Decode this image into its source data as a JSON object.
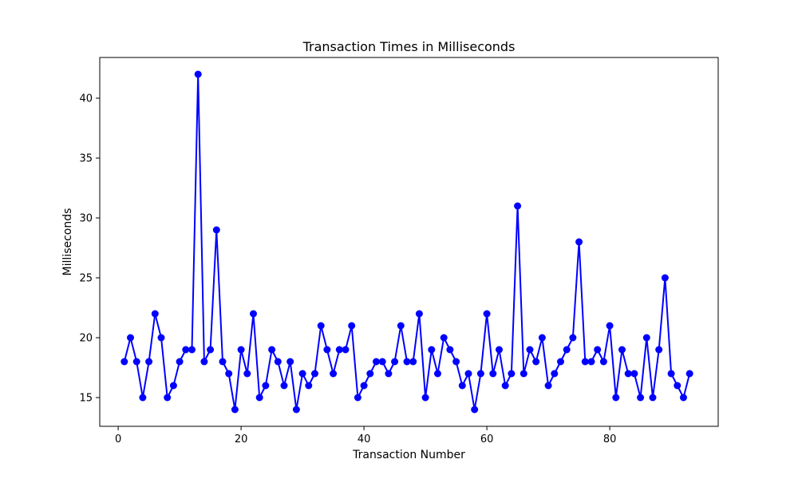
{
  "chart_data": {
    "type": "line",
    "title": "Transaction Times in Milliseconds",
    "xlabel": "Transaction Number",
    "ylabel": "Milliseconds",
    "xlim": [
      -3,
      97.65
    ],
    "ylim": [
      12.6,
      43.4
    ],
    "xticks": [
      0,
      20,
      40,
      60,
      80
    ],
    "yticks": [
      15,
      20,
      25,
      30,
      35,
      40
    ],
    "grid": false,
    "line_color": "#0000ff",
    "marker": "circle",
    "x": [
      1,
      2,
      3,
      4,
      5,
      6,
      7,
      8,
      9,
      10,
      11,
      12,
      13,
      14,
      15,
      16,
      17,
      18,
      19,
      20,
      21,
      22,
      23,
      24,
      25,
      26,
      27,
      28,
      29,
      30,
      31,
      32,
      33,
      34,
      35,
      36,
      37,
      38,
      39,
      40,
      41,
      42,
      43,
      44,
      45,
      46,
      47,
      48,
      49,
      50,
      51,
      52,
      53,
      54,
      55,
      56,
      57,
      58,
      59,
      60,
      61,
      62,
      63,
      64,
      65,
      66,
      67,
      68,
      69,
      70,
      71,
      72,
      73,
      74,
      75,
      76,
      77,
      78,
      79,
      80,
      81,
      82,
      83,
      84,
      85,
      86,
      87,
      88,
      89,
      90,
      91,
      92,
      93
    ],
    "values": [
      18,
      20,
      18,
      15,
      18,
      22,
      20,
      15,
      16,
      18,
      19,
      19,
      42,
      18,
      19,
      29,
      18,
      17,
      14,
      19,
      17,
      22,
      15,
      16,
      19,
      18,
      16,
      18,
      14,
      17,
      16,
      17,
      21,
      19,
      17,
      19,
      19,
      21,
      15,
      16,
      17,
      18,
      18,
      17,
      18,
      21,
      18,
      18,
      22,
      15,
      19,
      17,
      20,
      19,
      18,
      16,
      17,
      14,
      17,
      22,
      17,
      19,
      16,
      17,
      31,
      17,
      19,
      18,
      20,
      16,
      17,
      18,
      19,
      20,
      28,
      18,
      18,
      19,
      18,
      21,
      15,
      19,
      17,
      17,
      15,
      20,
      15,
      19,
      25,
      17,
      16,
      15,
      17
    ]
  }
}
